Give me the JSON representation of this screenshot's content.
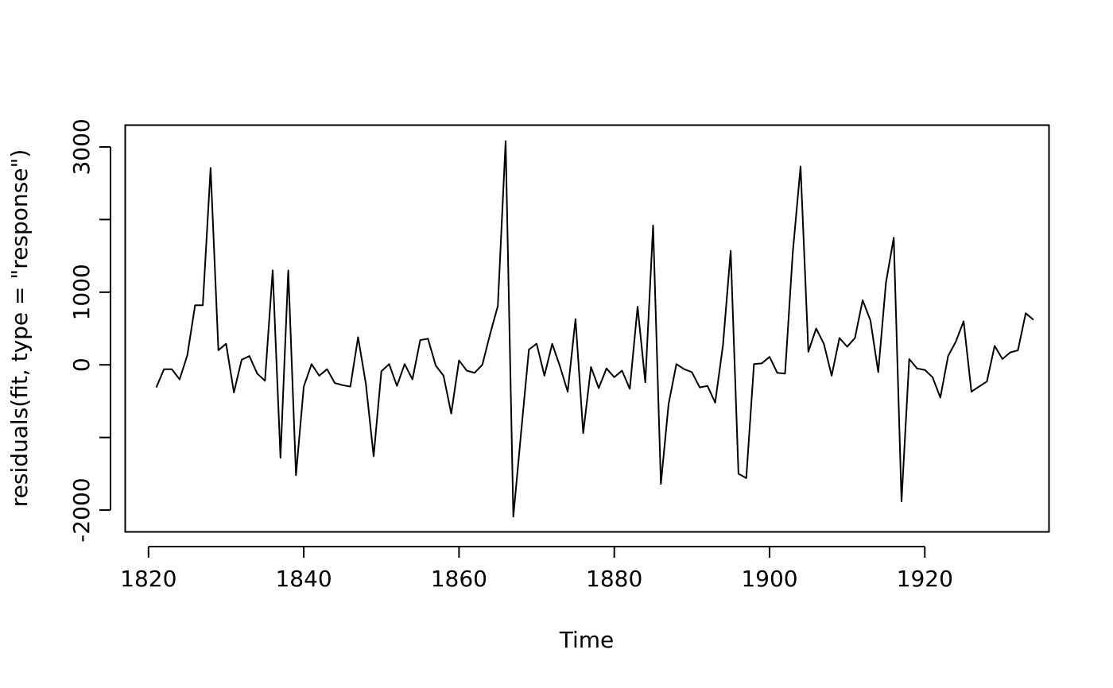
{
  "chart_data": {
    "type": "line",
    "title": "",
    "xlabel": "Time",
    "ylabel": "residuals(fit, type = \"response\")",
    "xlim": [
      1817,
      1936
    ],
    "ylim": [
      -2300,
      3300
    ],
    "x_ticks": [
      1820,
      1840,
      1860,
      1880,
      1900,
      1920
    ],
    "x_tick_labels": [
      "1820",
      "1840",
      "1860",
      "1880",
      "1900",
      "1920"
    ],
    "y_ticks": [
      -2000,
      -1000,
      0,
      1000,
      2000,
      3000
    ],
    "y_tick_labels": [
      "-2000",
      "",
      "0",
      "1000",
      "",
      "3000"
    ],
    "grid": false,
    "line_color": "#000000",
    "x_start": 1821,
    "x_step": 1,
    "values": [
      -310,
      -60,
      -60,
      -200,
      130,
      820,
      820,
      2710,
      200,
      290,
      -380,
      70,
      120,
      -120,
      -220,
      1300,
      -1280,
      1300,
      -1520,
      -300,
      10,
      -150,
      -60,
      -250,
      -280,
      -300,
      380,
      -260,
      -1260,
      -90,
      10,
      -290,
      10,
      -200,
      340,
      360,
      -10,
      -150,
      -670,
      60,
      -80,
      -110,
      0,
      420,
      810,
      3080,
      -2090,
      -930,
      210,
      290,
      -150,
      290,
      -20,
      -370,
      630,
      -940,
      -30,
      -320,
      -50,
      -170,
      -80,
      -330,
      800,
      -240,
      1920,
      -1640,
      -540,
      10,
      -60,
      -100,
      -310,
      -290,
      -520,
      270,
      1570,
      -1500,
      -1560,
      10,
      20,
      110,
      -110,
      -120,
      1560,
      2730,
      180,
      500,
      290,
      -150,
      370,
      250,
      370,
      890,
      610,
      -100,
      1130,
      1750,
      -1880,
      80,
      -50,
      -70,
      -170,
      -450,
      120,
      320,
      600,
      -370,
      -300,
      -230,
      260,
      80,
      170,
      200,
      710,
      620
    ]
  }
}
